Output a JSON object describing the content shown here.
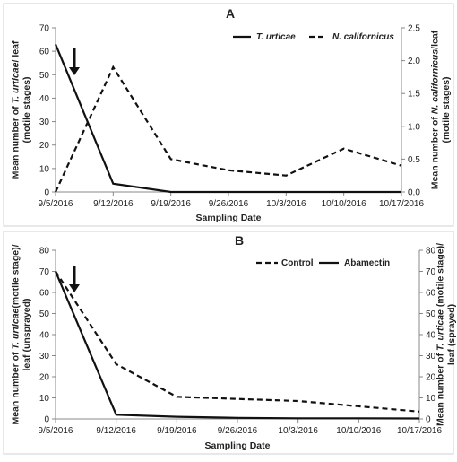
{
  "chart_data": [
    {
      "panel": "A",
      "type": "line",
      "x": [
        "9/5/2016",
        "9/12/2016",
        "9/19/2016",
        "9/26/2016",
        "10/3/2016",
        "10/10/2016",
        "10/17/2016"
      ],
      "xlabel": "Sampling Date",
      "ylabel_left": {
        "pre": "Mean number of ",
        "italic": "T. urticae",
        "post": "/ leaf",
        "line2": "(motile stages)"
      },
      "ylabel_right": {
        "pre": "Mean number of ",
        "italic": "N. californicus",
        "post": "/leaf",
        "line2": "(motile stages)"
      },
      "ylim_left": [
        0,
        70
      ],
      "yticks_left": [
        "0",
        "10",
        "20",
        "30",
        "40",
        "50",
        "60",
        "70"
      ],
      "ylim_right": [
        0,
        2.5
      ],
      "yticks_right": [
        "0.0",
        "0.5",
        "1.0",
        "1.5",
        "2.0",
        "2.5"
      ],
      "legend_position": "top-right",
      "arrow_at_x": "between 9/5/2016 and 9/12/2016",
      "series": [
        {
          "name": "T. urticae",
          "axis": "left",
          "style": "solid",
          "values": [
            63,
            3.5,
            0,
            0,
            0,
            0,
            0
          ]
        },
        {
          "name": "N. californicus",
          "axis": "right",
          "style": "dashed",
          "values": [
            0,
            1.9,
            0.5,
            0.33,
            0.25,
            0.66,
            0.4
          ]
        }
      ]
    },
    {
      "panel": "B",
      "type": "line",
      "x": [
        "9/5/2016",
        "9/12/2016",
        "9/19/2016",
        "9/26/2016",
        "10/3/2016",
        "10/10/2016",
        "10/17/2016"
      ],
      "xlabel": "Sampling Date",
      "ylabel_left": {
        "pre": "Mean number of ",
        "italic": "T. urticae",
        "post": "(motile stage)/",
        "line2": "leaf (unsprayed)"
      },
      "ylabel_right": {
        "pre": "Mean number of ",
        "italic": "T. urticae",
        "post": " (motile stage)/",
        "line2": "leaf (sprayed)"
      },
      "ylim_left": [
        0,
        80
      ],
      "yticks_left": [
        "0",
        "10",
        "20",
        "30",
        "40",
        "50",
        "60",
        "70",
        "80"
      ],
      "ylim_right": [
        0,
        80
      ],
      "yticks_right": [
        "0",
        "10",
        "20",
        "30",
        "40",
        "50",
        "60",
        "70",
        "80"
      ],
      "legend_position": "top-right",
      "arrow_at_x": "between 9/5/2016 and 9/12/2016",
      "series": [
        {
          "name": "Control",
          "axis": "left",
          "style": "dashed",
          "values": [
            70,
            26,
            10.5,
            9.5,
            8.5,
            6,
            3.5
          ]
        },
        {
          "name": "Abamectin",
          "axis": "right",
          "style": "solid",
          "values": [
            70,
            2,
            1,
            0.5,
            0.3,
            0.3,
            0.2
          ]
        }
      ]
    }
  ]
}
